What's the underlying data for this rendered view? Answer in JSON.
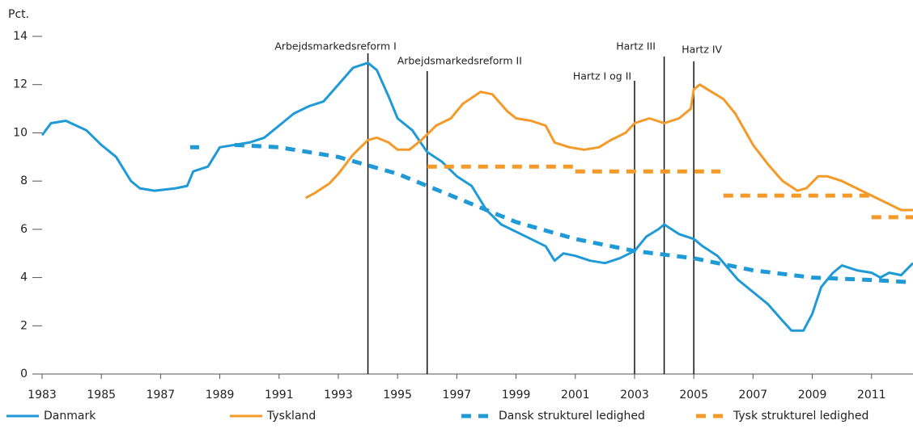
{
  "chart_data": {
    "type": "line",
    "ylabel": "Pct.",
    "xlim": [
      1983,
      2012.4
    ],
    "ylim": [
      0,
      14
    ],
    "xticks": [
      1983,
      1985,
      1987,
      1989,
      1991,
      1993,
      1995,
      1997,
      1999,
      2001,
      2003,
      2005,
      2007,
      2009,
      2011
    ],
    "yticks": [
      0,
      2,
      4,
      6,
      8,
      10,
      12,
      14
    ],
    "grid": false,
    "legend": "bottom",
    "series": [
      {
        "name": "Danmark",
        "color": "#1f9ad6",
        "dashed": false,
        "x": [
          1983,
          1983.3,
          1983.8,
          1984.5,
          1985,
          1985.5,
          1986,
          1986.3,
          1986.8,
          1987.5,
          1987.9,
          1988.1,
          1988.6,
          1989,
          1989.5,
          1990,
          1990.5,
          1991,
          1991.5,
          1992,
          1992.5,
          1993,
          1993.5,
          1994,
          1994.3,
          1994.7,
          1995,
          1995.5,
          1996,
          1996.5,
          1997,
          1997.5,
          1998,
          1998.5,
          1999,
          1999.5,
          2000,
          2000.3,
          2000.6,
          2001,
          2001.5,
          2002,
          2002.5,
          2003,
          2003.4,
          2003.8,
          2004,
          2004.5,
          2005,
          2005.3,
          2005.8,
          2006.5,
          2007,
          2007.5,
          2008,
          2008.3,
          2008.7,
          2009,
          2009.3,
          2009.7,
          2010,
          2010.5,
          2011,
          2011.3,
          2011.6,
          2012,
          2012.4
        ],
        "values": [
          9.9,
          10.4,
          10.5,
          10.1,
          9.5,
          9.0,
          8.0,
          7.7,
          7.6,
          7.7,
          7.8,
          8.4,
          8.6,
          9.4,
          9.5,
          9.6,
          9.8,
          10.3,
          10.8,
          11.1,
          11.3,
          12.0,
          12.7,
          12.9,
          12.6,
          11.5,
          10.6,
          10.1,
          9.2,
          8.8,
          8.2,
          7.8,
          6.8,
          6.2,
          5.9,
          5.6,
          5.3,
          4.7,
          5.0,
          4.9,
          4.7,
          4.6,
          4.8,
          5.1,
          5.7,
          6.0,
          6.2,
          5.8,
          5.6,
          5.3,
          4.9,
          3.9,
          3.4,
          2.9,
          2.2,
          1.8,
          1.8,
          2.5,
          3.6,
          4.2,
          4.5,
          4.3,
          4.2,
          4.0,
          4.2,
          4.1,
          4.6
        ]
      },
      {
        "name": "Tyskland",
        "color": "#f39a28",
        "dashed": false,
        "x": [
          1991.9,
          1992.2,
          1992.7,
          1993,
          1993.5,
          1994,
          1994.3,
          1994.7,
          1995,
          1995.4,
          1995.8,
          1996.3,
          1996.8,
          1997.2,
          1997.8,
          1998.2,
          1998.7,
          1999,
          1999.5,
          2000,
          2000.3,
          2000.8,
          2001.3,
          2001.8,
          2002.2,
          2002.7,
          2003,
          2003.5,
          2004,
          2004.5,
          2004.9,
          2005,
          2005.2,
          2005.6,
          2006,
          2006.4,
          2007,
          2007.5,
          2008,
          2008.5,
          2008.8,
          2009.2,
          2009.5,
          2010,
          2010.5,
          2011,
          2011.5,
          2012,
          2012.4
        ],
        "values": [
          7.3,
          7.5,
          7.9,
          8.3,
          9.1,
          9.7,
          9.8,
          9.6,
          9.3,
          9.3,
          9.7,
          10.3,
          10.6,
          11.2,
          11.7,
          11.6,
          10.9,
          10.6,
          10.5,
          10.3,
          9.6,
          9.4,
          9.3,
          9.4,
          9.7,
          10.0,
          10.4,
          10.6,
          10.4,
          10.6,
          11.0,
          11.8,
          12.0,
          11.7,
          11.4,
          10.8,
          9.5,
          8.7,
          8.0,
          7.6,
          7.7,
          8.2,
          8.2,
          8.0,
          7.7,
          7.4,
          7.1,
          6.8,
          6.8
        ]
      },
      {
        "name": "Dansk strukturel ledighed",
        "color": "#1f9ad6",
        "dashed": true,
        "x": [
          1988,
          1988.3,
          1988.6,
          1989.5,
          1991,
          1993,
          1995,
          1997,
          1999,
          2001,
          2003,
          2005,
          2007,
          2009,
          2011,
          2012.4
        ],
        "values": [
          9.4,
          9.4,
          null,
          9.5,
          9.4,
          9.0,
          8.3,
          7.3,
          6.3,
          5.6,
          5.1,
          4.8,
          4.3,
          4.0,
          3.9,
          3.8
        ]
      },
      {
        "name": "Tysk strukturel ledighed",
        "color": "#f39a28",
        "dashed": true,
        "x": [
          1996,
          2001,
          2001,
          2001,
          2005.9,
          2006,
          2006,
          2011,
          2011,
          2011,
          2012.4
        ],
        "values": [
          8.6,
          8.6,
          null,
          8.4,
          8.4,
          null,
          7.4,
          7.4,
          null,
          6.5,
          6.5
        ]
      }
    ],
    "annotations": [
      {
        "x": 1994,
        "label": "Arbejdsmarkedsreform I"
      },
      {
        "x": 1996,
        "label": "Arbejdsmarkedsreform II"
      },
      {
        "x": 2003,
        "label": "Hartz I og II"
      },
      {
        "x": 2004,
        "label": "Hartz III"
      },
      {
        "x": 2005,
        "label": "Hartz IV"
      }
    ]
  }
}
